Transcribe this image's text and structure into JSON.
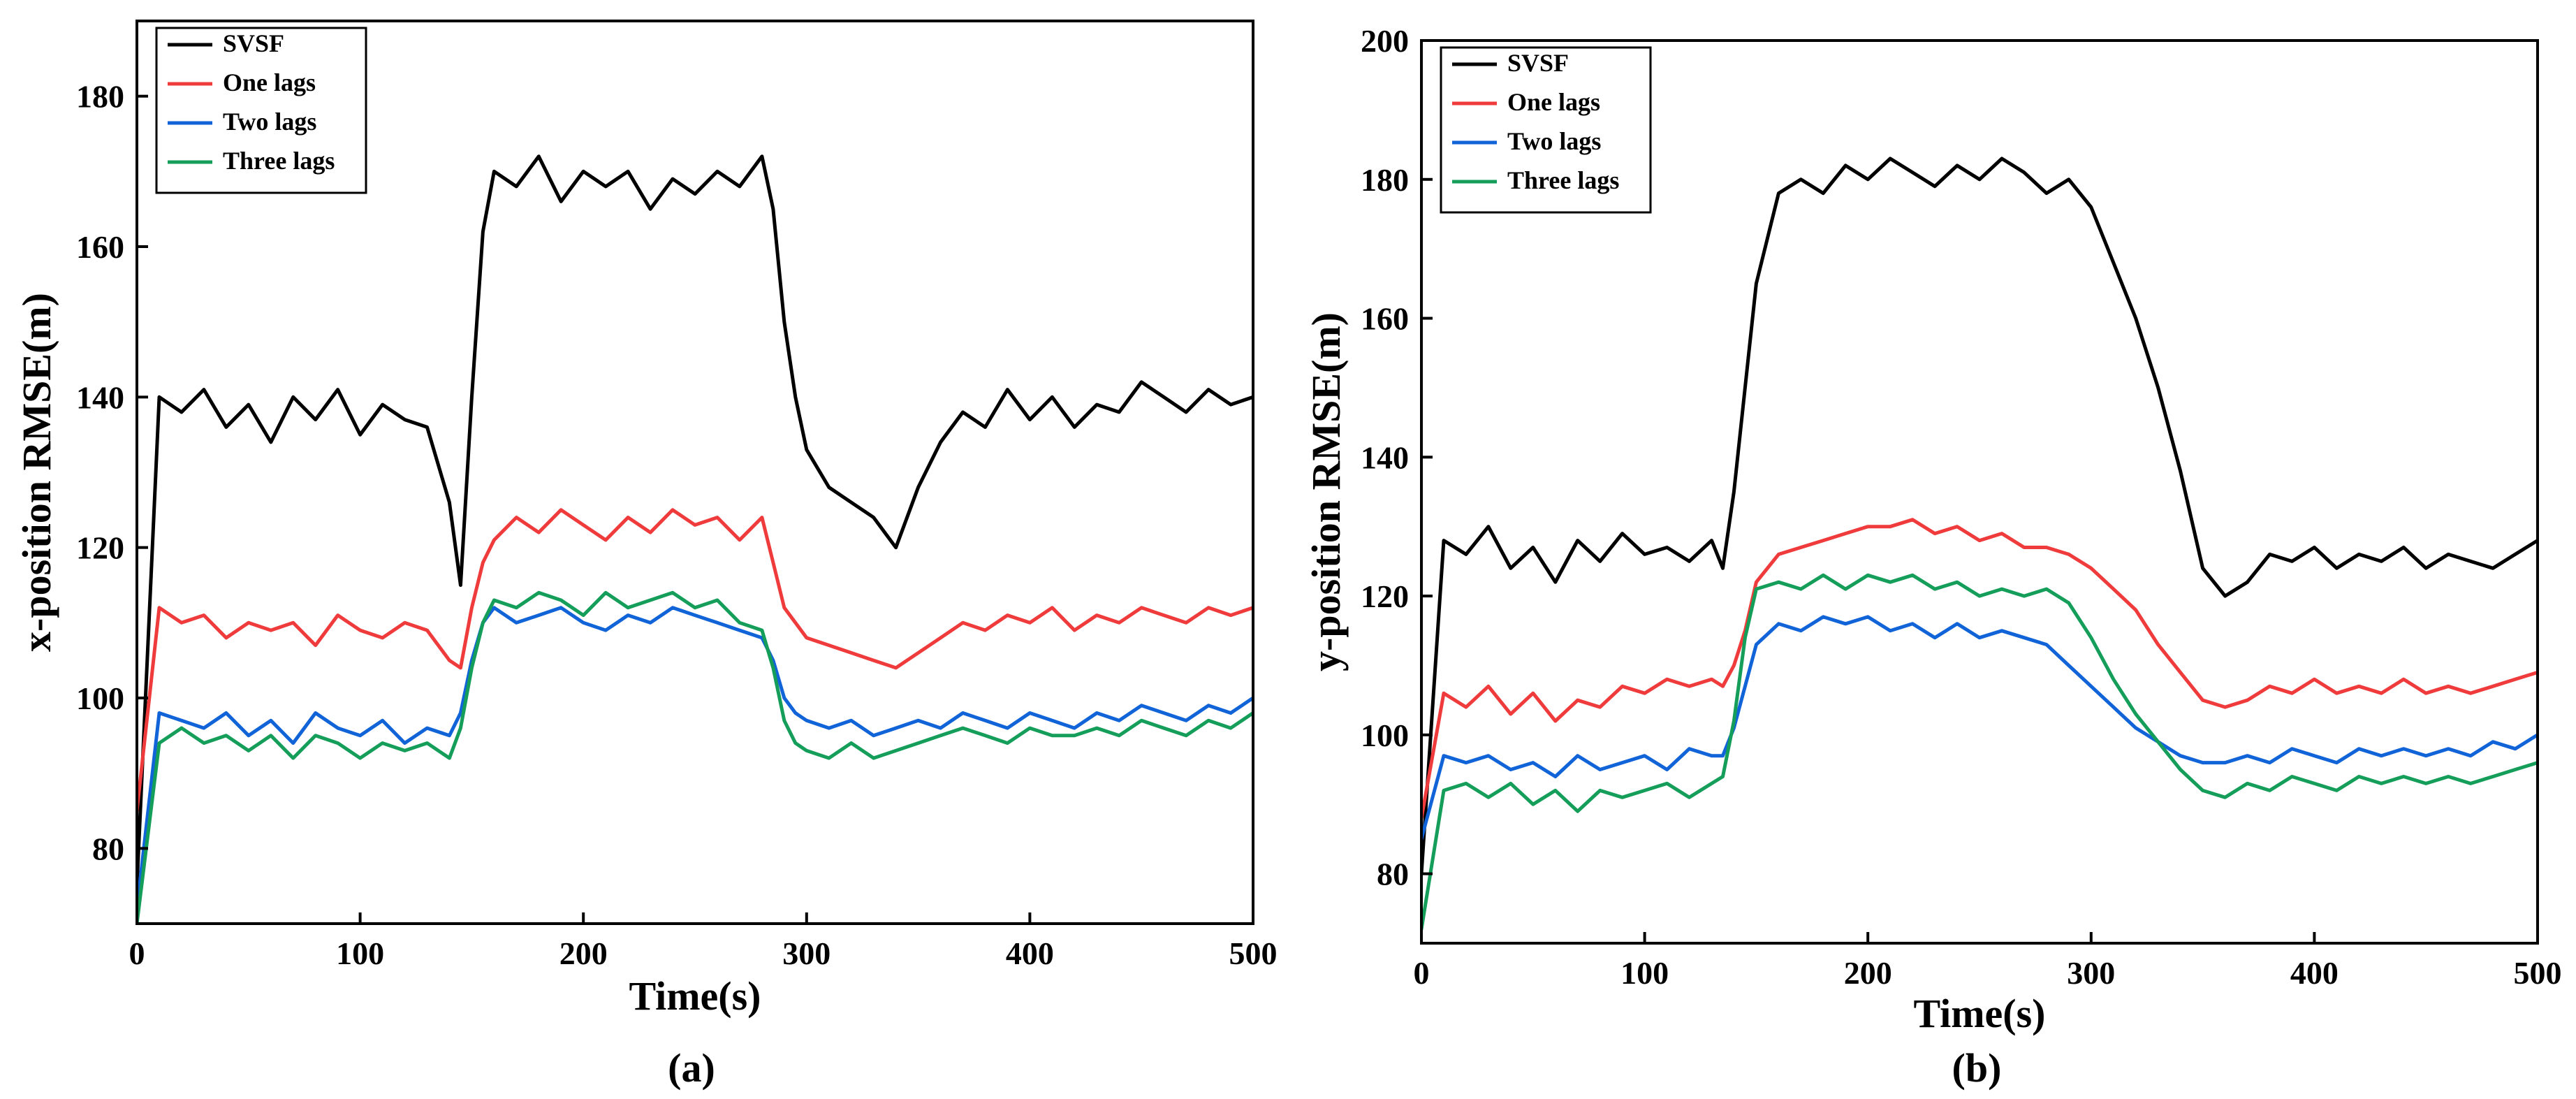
{
  "chart_data": [
    {
      "type": "line",
      "panel_label": "(a)",
      "xlabel": "Time(s)",
      "ylabel": "x-position RMSE(m)",
      "xlim": [
        0,
        500
      ],
      "ylim": [
        70,
        190
      ],
      "xticks": [
        0,
        100,
        200,
        300,
        400,
        500
      ],
      "yticks": [
        80,
        100,
        120,
        140,
        160,
        180
      ],
      "legend_position": "top-left",
      "grid": false,
      "x": [
        0,
        10,
        20,
        30,
        40,
        50,
        60,
        70,
        80,
        90,
        100,
        110,
        120,
        130,
        140,
        145,
        150,
        155,
        160,
        170,
        180,
        190,
        200,
        210,
        220,
        230,
        240,
        250,
        260,
        270,
        280,
        285,
        290,
        295,
        300,
        310,
        320,
        330,
        340,
        350,
        360,
        370,
        380,
        390,
        400,
        410,
        420,
        430,
        440,
        450,
        460,
        470,
        480,
        490,
        500
      ],
      "series": [
        {
          "name": "SVSF",
          "color": "#000000",
          "values": [
            75,
            140,
            138,
            141,
            136,
            139,
            134,
            140,
            137,
            141,
            135,
            139,
            137,
            136,
            126,
            115,
            140,
            162,
            170,
            168,
            172,
            166,
            170,
            168,
            170,
            165,
            169,
            167,
            170,
            168,
            172,
            165,
            150,
            140,
            133,
            128,
            126,
            124,
            120,
            128,
            134,
            138,
            136,
            141,
            137,
            140,
            136,
            139,
            138,
            142,
            140,
            138,
            141,
            139,
            140
          ]
        },
        {
          "name": "One lags",
          "color": "#ef3b3b",
          "values": [
            85,
            112,
            110,
            111,
            108,
            110,
            109,
            110,
            107,
            111,
            109,
            108,
            110,
            109,
            105,
            104,
            112,
            118,
            121,
            124,
            122,
            125,
            123,
            121,
            124,
            122,
            125,
            123,
            124,
            121,
            124,
            118,
            112,
            110,
            108,
            107,
            106,
            105,
            104,
            106,
            108,
            110,
            109,
            111,
            110,
            112,
            109,
            111,
            110,
            112,
            111,
            110,
            112,
            111,
            112
          ]
        },
        {
          "name": "Two lags",
          "color": "#1163d8",
          "values": [
            72,
            98,
            97,
            96,
            98,
            95,
            97,
            94,
            98,
            96,
            95,
            97,
            94,
            96,
            95,
            98,
            105,
            110,
            112,
            110,
            111,
            112,
            110,
            109,
            111,
            110,
            112,
            111,
            110,
            109,
            108,
            105,
            100,
            98,
            97,
            96,
            97,
            95,
            96,
            97,
            96,
            98,
            97,
            96,
            98,
            97,
            96,
            98,
            97,
            99,
            98,
            97,
            99,
            98,
            100
          ]
        },
        {
          "name": "Three lags",
          "color": "#159e5a",
          "values": [
            70,
            94,
            96,
            94,
            95,
            93,
            95,
            92,
            95,
            94,
            92,
            94,
            93,
            94,
            92,
            96,
            104,
            110,
            113,
            112,
            114,
            113,
            111,
            114,
            112,
            113,
            114,
            112,
            113,
            110,
            109,
            104,
            97,
            94,
            93,
            92,
            94,
            92,
            93,
            94,
            95,
            96,
            95,
            94,
            96,
            95,
            95,
            96,
            95,
            97,
            96,
            95,
            97,
            96,
            98
          ]
        }
      ]
    },
    {
      "type": "line",
      "panel_label": "(b)",
      "xlabel": "Time(s)",
      "ylabel": "y-position RMSE(m)",
      "xlim": [
        0,
        500
      ],
      "ylim": [
        70,
        200
      ],
      "xticks": [
        0,
        100,
        200,
        300,
        400,
        500
      ],
      "yticks": [
        80,
        100,
        120,
        140,
        160,
        180,
        200
      ],
      "legend_position": "top-left",
      "grid": false,
      "x": [
        0,
        10,
        20,
        30,
        40,
        50,
        60,
        70,
        80,
        90,
        100,
        110,
        120,
        130,
        135,
        140,
        145,
        150,
        160,
        170,
        180,
        190,
        200,
        210,
        220,
        230,
        240,
        250,
        260,
        270,
        280,
        290,
        300,
        310,
        320,
        330,
        340,
        350,
        360,
        370,
        380,
        390,
        400,
        410,
        420,
        430,
        440,
        450,
        460,
        470,
        480,
        490,
        500
      ],
      "series": [
        {
          "name": "SVSF",
          "color": "#000000",
          "values": [
            80,
            128,
            126,
            130,
            124,
            127,
            122,
            128,
            125,
            129,
            126,
            127,
            125,
            128,
            124,
            135,
            150,
            165,
            178,
            180,
            178,
            182,
            180,
            183,
            181,
            179,
            182,
            180,
            183,
            181,
            178,
            180,
            176,
            168,
            160,
            150,
            138,
            124,
            120,
            122,
            126,
            125,
            127,
            124,
            126,
            125,
            127,
            124,
            126,
            125,
            124,
            126,
            128
          ]
        },
        {
          "name": "One lags",
          "color": "#ef3b3b",
          "values": [
            88,
            106,
            104,
            107,
            103,
            106,
            102,
            105,
            104,
            107,
            106,
            108,
            107,
            108,
            107,
            110,
            115,
            122,
            126,
            127,
            128,
            129,
            130,
            130,
            131,
            129,
            130,
            128,
            129,
            127,
            127,
            126,
            124,
            121,
            118,
            113,
            109,
            105,
            104,
            105,
            107,
            106,
            108,
            106,
            107,
            106,
            108,
            106,
            107,
            106,
            107,
            108,
            109
          ]
        },
        {
          "name": "Two lags",
          "color": "#1163d8",
          "values": [
            85,
            97,
            96,
            97,
            95,
            96,
            94,
            97,
            95,
            96,
            97,
            95,
            98,
            97,
            97,
            101,
            107,
            113,
            116,
            115,
            117,
            116,
            117,
            115,
            116,
            114,
            116,
            114,
            115,
            114,
            113,
            110,
            107,
            104,
            101,
            99,
            97,
            96,
            96,
            97,
            96,
            98,
            97,
            96,
            98,
            97,
            98,
            97,
            98,
            97,
            99,
            98,
            100
          ]
        },
        {
          "name": "Three lags",
          "color": "#159e5a",
          "values": [
            72,
            92,
            93,
            91,
            93,
            90,
            92,
            89,
            92,
            91,
            92,
            93,
            91,
            93,
            94,
            102,
            114,
            121,
            122,
            121,
            123,
            121,
            123,
            122,
            123,
            121,
            122,
            120,
            121,
            120,
            121,
            119,
            114,
            108,
            103,
            99,
            95,
            92,
            91,
            93,
            92,
            94,
            93,
            92,
            94,
            93,
            94,
            93,
            94,
            93,
            94,
            95,
            96
          ]
        }
      ]
    }
  ]
}
